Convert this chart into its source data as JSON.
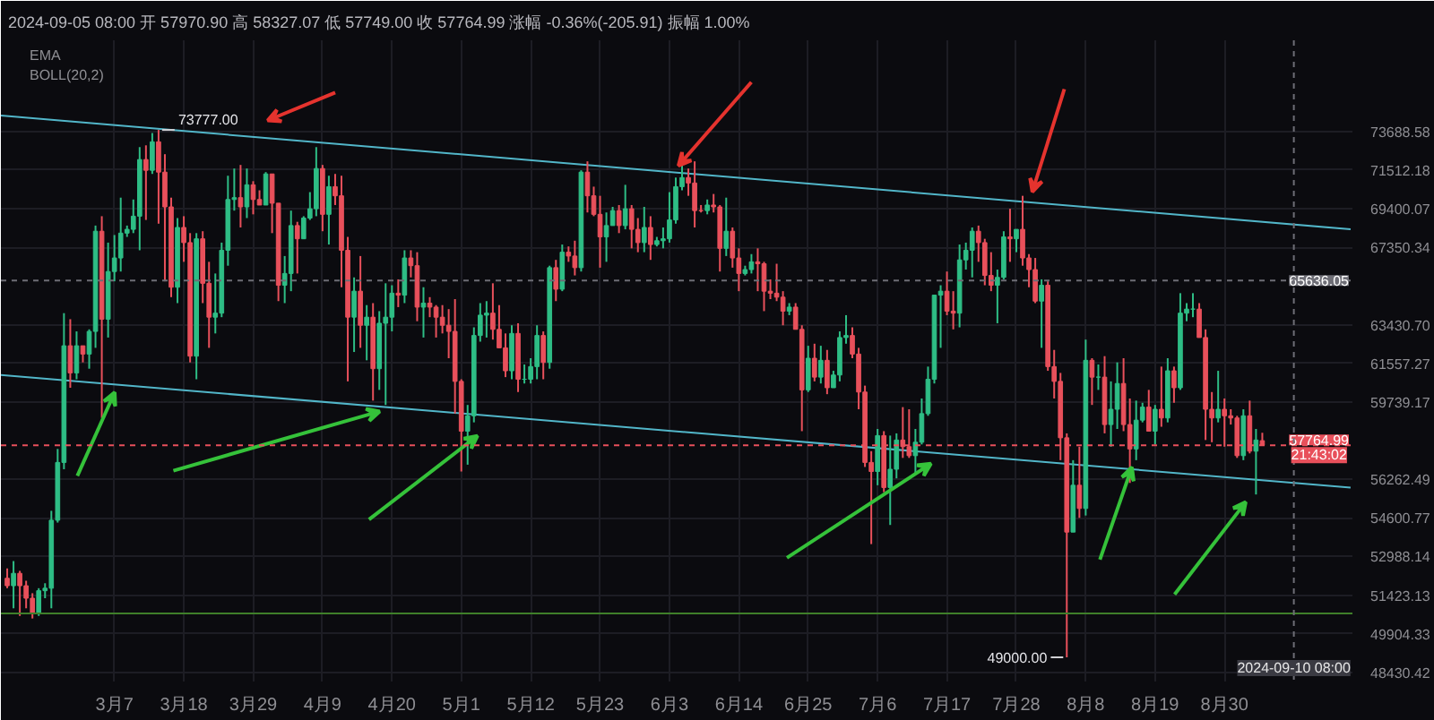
{
  "chart_data": {
    "type": "candlestick",
    "title": "2024-09-05 08:00 开 57970.90 高 58327.07 低 57749.00 收 57764.99 涨幅 -0.36%(-205.91) 振幅 1.00%",
    "x": [
      "2024-02-19",
      "2024-02-20",
      "2024-02-21",
      "2024-02-22",
      "2024-02-23",
      "2024-02-24",
      "2024-02-25",
      "2024-02-26",
      "2024-02-27",
      "2024-02-28",
      "2024-02-29",
      "2024-03-01",
      "2024-03-02",
      "2024-03-03",
      "2024-03-04",
      "2024-03-05",
      "2024-03-06",
      "2024-03-07",
      "2024-03-08",
      "2024-03-09",
      "2024-03-10",
      "2024-03-11",
      "2024-03-12",
      "2024-03-13",
      "2024-03-14",
      "2024-03-15",
      "2024-03-16",
      "2024-03-17",
      "2024-03-18",
      "2024-03-19",
      "2024-03-20",
      "2024-03-21",
      "2024-03-22",
      "2024-03-23",
      "2024-03-24",
      "2024-03-25",
      "2024-03-26",
      "2024-03-27",
      "2024-03-28",
      "2024-03-29",
      "2024-03-30",
      "2024-03-31",
      "2024-04-01",
      "2024-04-02",
      "2024-04-03",
      "2024-04-04",
      "2024-04-05",
      "2024-04-06",
      "2024-04-07",
      "2024-04-08",
      "2024-04-09",
      "2024-04-10",
      "2024-04-11",
      "2024-04-12",
      "2024-04-13",
      "2024-04-14",
      "2024-04-15",
      "2024-04-16",
      "2024-04-17",
      "2024-04-18",
      "2024-04-19",
      "2024-04-20",
      "2024-04-21",
      "2024-04-22",
      "2024-04-23",
      "2024-04-24",
      "2024-04-25",
      "2024-04-26",
      "2024-04-27",
      "2024-04-28",
      "2024-04-29",
      "2024-04-30",
      "2024-05-01",
      "2024-05-02",
      "2024-05-03",
      "2024-05-04",
      "2024-05-05",
      "2024-05-06",
      "2024-05-07",
      "2024-05-08",
      "2024-05-09",
      "2024-05-10",
      "2024-05-11",
      "2024-05-12",
      "2024-05-13",
      "2024-05-14",
      "2024-05-15",
      "2024-05-16",
      "2024-05-17",
      "2024-05-18",
      "2024-05-19",
      "2024-05-20",
      "2024-05-21",
      "2024-05-22",
      "2024-05-23",
      "2024-05-24",
      "2024-05-25",
      "2024-05-26",
      "2024-05-27",
      "2024-05-28",
      "2024-05-29",
      "2024-05-30",
      "2024-05-31",
      "2024-06-01",
      "2024-06-02",
      "2024-06-03",
      "2024-06-04",
      "2024-06-05",
      "2024-06-06",
      "2024-06-07",
      "2024-06-08",
      "2024-06-09",
      "2024-06-10",
      "2024-06-11",
      "2024-06-12",
      "2024-06-13",
      "2024-06-14",
      "2024-06-15",
      "2024-06-16",
      "2024-06-17",
      "2024-06-18",
      "2024-06-19",
      "2024-06-20",
      "2024-06-21",
      "2024-06-22",
      "2024-06-23",
      "2024-06-24",
      "2024-06-25",
      "2024-06-26",
      "2024-06-27",
      "2024-06-28",
      "2024-06-29",
      "2024-06-30",
      "2024-07-01",
      "2024-07-02",
      "2024-07-03",
      "2024-07-04",
      "2024-07-05",
      "2024-07-06",
      "2024-07-07",
      "2024-07-08",
      "2024-07-09",
      "2024-07-10",
      "2024-07-11",
      "2024-07-12",
      "2024-07-13",
      "2024-07-14",
      "2024-07-15",
      "2024-07-16",
      "2024-07-17",
      "2024-07-18",
      "2024-07-19",
      "2024-07-20",
      "2024-07-21",
      "2024-07-22",
      "2024-07-23",
      "2024-07-24",
      "2024-07-25",
      "2024-07-26",
      "2024-07-27",
      "2024-07-28",
      "2024-07-29",
      "2024-07-30",
      "2024-07-31",
      "2024-08-01",
      "2024-08-02",
      "2024-08-03",
      "2024-08-04",
      "2024-08-05",
      "2024-08-06",
      "2024-08-07",
      "2024-08-08",
      "2024-08-09",
      "2024-08-10",
      "2024-08-11",
      "2024-08-12",
      "2024-08-13",
      "2024-08-14",
      "2024-08-15",
      "2024-08-16",
      "2024-08-17",
      "2024-08-18",
      "2024-08-19",
      "2024-08-20",
      "2024-08-21",
      "2024-08-22",
      "2024-08-23",
      "2024-08-24",
      "2024-08-25",
      "2024-08-26",
      "2024-08-27",
      "2024-08-28",
      "2024-08-29",
      "2024-08-30",
      "2024-08-31",
      "2024-09-01",
      "2024-09-02",
      "2024-09-03",
      "2024-09-04",
      "2024-09-05"
    ],
    "ohlc": [
      [
        52100,
        52500,
        51700,
        51800
      ],
      [
        51800,
        52800,
        50900,
        52300
      ],
      [
        52300,
        52400,
        50600,
        51800
      ],
      [
        51800,
        52000,
        50900,
        51300
      ],
      [
        51300,
        51500,
        50500,
        50700
      ],
      [
        50700,
        51700,
        50600,
        51600
      ],
      [
        51600,
        51900,
        51300,
        51700
      ],
      [
        51700,
        54900,
        50900,
        54500
      ],
      [
        54500,
        57600,
        54400,
        57000
      ],
      [
        57000,
        64000,
        56700,
        62400
      ],
      [
        62400,
        63700,
        60400,
        61100
      ],
      [
        61100,
        63100,
        60800,
        62400
      ],
      [
        62400,
        62400,
        61600,
        62000
      ],
      [
        62000,
        63200,
        61300,
        63100
      ],
      [
        63100,
        68500,
        62300,
        68200
      ],
      [
        68200,
        69000,
        59000,
        63700
      ],
      [
        63700,
        67600,
        62800,
        66100
      ],
      [
        66100,
        68000,
        65600,
        66800
      ],
      [
        66800,
        70000,
        66100,
        68100
      ],
      [
        68100,
        68500,
        67900,
        68300
      ],
      [
        68300,
        69900,
        68100,
        69000
      ],
      [
        69000,
        72800,
        67200,
        72100
      ],
      [
        72100,
        72900,
        68800,
        71500
      ],
      [
        71500,
        73600,
        71300,
        73100
      ],
      [
        73100,
        73777,
        68600,
        71400
      ],
      [
        71400,
        72400,
        65600,
        69500
      ],
      [
        69500,
        70000,
        64800,
        65300
      ],
      [
        65300,
        68900,
        64500,
        68400
      ],
      [
        68400,
        69000,
        66600,
        67600
      ],
      [
        67600,
        68100,
        61600,
        61900
      ],
      [
        61900,
        68100,
        60800,
        67800
      ],
      [
        67800,
        68200,
        64500,
        65500
      ],
      [
        65500,
        66600,
        62300,
        63800
      ],
      [
        63800,
        66000,
        63000,
        64000
      ],
      [
        64000,
        67600,
        63800,
        67200
      ],
      [
        67200,
        71200,
        66400,
        69900
      ],
      [
        69900,
        71600,
        69300,
        70000
      ],
      [
        70000,
        71800,
        68400,
        69500
      ],
      [
        69500,
        71600,
        68900,
        70700
      ],
      [
        70700,
        70900,
        69100,
        69900
      ],
      [
        69900,
        70400,
        69600,
        69600
      ],
      [
        69600,
        71400,
        69600,
        71300
      ],
      [
        71300,
        71300,
        68100,
        69700
      ],
      [
        69700,
        69700,
        64600,
        65400
      ],
      [
        65400,
        66900,
        64500,
        66000
      ],
      [
        66000,
        69300,
        65100,
        68500
      ],
      [
        68500,
        68700,
        66000,
        67800
      ],
      [
        67800,
        69000,
        67800,
        68900
      ],
      [
        68900,
        70300,
        68800,
        69400
      ],
      [
        69400,
        72800,
        69000,
        71600
      ],
      [
        71600,
        71800,
        68200,
        69100
      ],
      [
        69100,
        71200,
        67500,
        70600
      ],
      [
        70600,
        71300,
        69600,
        70100
      ],
      [
        70100,
        71200,
        65300,
        67200
      ],
      [
        67200,
        67900,
        60700,
        63800
      ],
      [
        63800,
        65800,
        62100,
        65100
      ],
      [
        65100,
        66900,
        62300,
        63400
      ],
      [
        63400,
        64400,
        61700,
        63800
      ],
      [
        63800,
        64500,
        59800,
        61300
      ],
      [
        61300,
        64100,
        60300,
        63500
      ],
      [
        63500,
        65500,
        59600,
        63800
      ],
      [
        63800,
        65400,
        63100,
        65000
      ],
      [
        65000,
        65700,
        64300,
        64900
      ],
      [
        64900,
        67200,
        64500,
        66800
      ],
      [
        66800,
        67200,
        65800,
        66400
      ],
      [
        66400,
        67100,
        63600,
        64300
      ],
      [
        64300,
        65300,
        62800,
        64500
      ],
      [
        64500,
        64800,
        63800,
        64300
      ],
      [
        64300,
        64400,
        62800,
        63800
      ],
      [
        63800,
        64400,
        63000,
        63400
      ],
      [
        63400,
        64200,
        61800,
        63100
      ],
      [
        63100,
        64700,
        59200,
        60700
      ],
      [
        60700,
        60800,
        56600,
        58400
      ],
      [
        58400,
        59600,
        56900,
        59100
      ],
      [
        59100,
        63300,
        58800,
        62900
      ],
      [
        62900,
        64500,
        62600,
        63900
      ],
      [
        63900,
        64600,
        62800,
        64000
      ],
      [
        64000,
        65500,
        62700,
        63200
      ],
      [
        63200,
        64400,
        62300,
        62300
      ],
      [
        62300,
        63000,
        60900,
        61200
      ],
      [
        61200,
        63400,
        60800,
        63000
      ],
      [
        63000,
        63500,
        60200,
        60800
      ],
      [
        60800,
        61500,
        60600,
        60800
      ],
      [
        60800,
        61800,
        60600,
        61400
      ],
      [
        61400,
        63400,
        60800,
        62900
      ],
      [
        62900,
        63100,
        60800,
        61600
      ],
      [
        61600,
        66400,
        61300,
        66300
      ],
      [
        66300,
        66700,
        64600,
        65200
      ],
      [
        65200,
        67500,
        65100,
        67100
      ],
      [
        67100,
        67400,
        66600,
        66900
      ],
      [
        66900,
        67700,
        65900,
        66300
      ],
      [
        66300,
        71500,
        66100,
        71400
      ],
      [
        71400,
        72000,
        69200,
        70100
      ],
      [
        70100,
        70600,
        69000,
        69100
      ],
      [
        69100,
        70100,
        66300,
        67900
      ],
      [
        67900,
        69200,
        66600,
        68500
      ],
      [
        68500,
        69500,
        68500,
        69300
      ],
      [
        69300,
        69600,
        68100,
        68500
      ],
      [
        68500,
        70700,
        68300,
        69400
      ],
      [
        69400,
        69600,
        67300,
        68300
      ],
      [
        68300,
        68900,
        67100,
        67600
      ],
      [
        67600,
        69500,
        67100,
        68400
      ],
      [
        68400,
        69000,
        66700,
        67500
      ],
      [
        67500,
        67900,
        67400,
        67700
      ],
      [
        67700,
        68400,
        67300,
        67800
      ],
      [
        67800,
        70300,
        67600,
        68800
      ],
      [
        68800,
        71100,
        68600,
        70600
      ],
      [
        70600,
        71800,
        70400,
        71100
      ],
      [
        71100,
        71600,
        70100,
        70800
      ],
      [
        70800,
        72000,
        68400,
        69300
      ],
      [
        69300,
        69600,
        69200,
        69300
      ],
      [
        69300,
        69900,
        69100,
        69600
      ],
      [
        69600,
        70200,
        69200,
        69500
      ],
      [
        69500,
        69600,
        66100,
        67300
      ],
      [
        67300,
        70000,
        66900,
        68200
      ],
      [
        68200,
        68400,
        66300,
        66800
      ],
      [
        66800,
        67300,
        65100,
        66000
      ],
      [
        66000,
        66400,
        65900,
        66200
      ],
      [
        66200,
        67000,
        66000,
        66600
      ],
      [
        66600,
        67300,
        65100,
        66500
      ],
      [
        66500,
        66600,
        64100,
        65100
      ],
      [
        65100,
        65700,
        64700,
        65000
      ],
      [
        65000,
        66500,
        64600,
        64800
      ],
      [
        64800,
        65100,
        63400,
        64100
      ],
      [
        64100,
        64500,
        63900,
        64300
      ],
      [
        64300,
        64500,
        63200,
        63200
      ],
      [
        63200,
        63400,
        58400,
        60300
      ],
      [
        60300,
        62400,
        60200,
        61800
      ],
      [
        61800,
        62500,
        60700,
        60900
      ],
      [
        60900,
        62400,
        60600,
        61700
      ],
      [
        61700,
        62200,
        60100,
        60400
      ],
      [
        60400,
        61200,
        60400,
        61000
      ],
      [
        61000,
        63100,
        60700,
        62800
      ],
      [
        62800,
        63900,
        62500,
        62900
      ],
      [
        62900,
        63300,
        61800,
        62000
      ],
      [
        62000,
        62300,
        59400,
        60200
      ],
      [
        60200,
        60500,
        56800,
        57000
      ],
      [
        57000,
        57500,
        53500,
        56600
      ],
      [
        56600,
        58500,
        56000,
        58200
      ],
      [
        58200,
        58400,
        55700,
        55900
      ],
      [
        55900,
        58200,
        54300,
        56700
      ],
      [
        56700,
        58300,
        56300,
        58000
      ],
      [
        58000,
        59500,
        57200,
        57700
      ],
      [
        57700,
        59400,
        57200,
        57300
      ],
      [
        57300,
        58500,
        56500,
        57900
      ],
      [
        57900,
        59900,
        57800,
        59200
      ],
      [
        59200,
        61400,
        59100,
        60800
      ],
      [
        60800,
        64900,
        60600,
        64900
      ],
      [
        64900,
        65400,
        62300,
        65100
      ],
      [
        65100,
        66100,
        63900,
        64100
      ],
      [
        64100,
        65100,
        63200,
        64000
      ],
      [
        64000,
        67500,
        63300,
        66700
      ],
      [
        66700,
        67600,
        66200,
        67200
      ],
      [
        67200,
        68400,
        65800,
        68200
      ],
      [
        68200,
        68500,
        66600,
        67600
      ],
      [
        67600,
        67800,
        65400,
        65900
      ],
      [
        65900,
        67100,
        65100,
        65400
      ],
      [
        65400,
        66200,
        63500,
        65800
      ],
      [
        65800,
        68200,
        65700,
        67900
      ],
      [
        67900,
        69400,
        66600,
        67800
      ],
      [
        67800,
        68300,
        67100,
        68300
      ],
      [
        68300,
        70100,
        66400,
        66800
      ],
      [
        66800,
        67000,
        65300,
        66200
      ],
      [
        66200,
        66800,
        64500,
        64600
      ],
      [
        64600,
        65700,
        62300,
        65400
      ],
      [
        65400,
        65600,
        61200,
        61400
      ],
      [
        61400,
        62200,
        59900,
        60700
      ],
      [
        60700,
        61100,
        57100,
        58100
      ],
      [
        58100,
        58300,
        49000,
        54000
      ],
      [
        54000,
        57100,
        54000,
        56000
      ],
      [
        56000,
        57700,
        54600,
        55000
      ],
      [
        55000,
        62700,
        54700,
        61700
      ],
      [
        61700,
        61800,
        59600,
        60900
      ],
      [
        60900,
        61500,
        60300,
        60900
      ],
      [
        60900,
        61900,
        58300,
        58700
      ],
      [
        58700,
        60700,
        57700,
        59400
      ],
      [
        59400,
        61600,
        58500,
        60600
      ],
      [
        60600,
        61800,
        58400,
        58700
      ],
      [
        58700,
        59900,
        56100,
        57600
      ],
      [
        57600,
        59800,
        57100,
        58900
      ],
      [
        58900,
        59700,
        58800,
        59500
      ],
      [
        59500,
        60300,
        58400,
        58400
      ],
      [
        58400,
        59600,
        57800,
        59400
      ],
      [
        59400,
        61400,
        58600,
        59000
      ],
      [
        59000,
        61800,
        58800,
        61200
      ],
      [
        61200,
        61400,
        59700,
        60400
      ],
      [
        60400,
        65000,
        60300,
        64000
      ],
      [
        64000,
        64500,
        63600,
        64200
      ],
      [
        64200,
        65000,
        63800,
        64200
      ],
      [
        64200,
        64500,
        62800,
        62800
      ],
      [
        62800,
        63200,
        58000,
        59400
      ],
      [
        59400,
        60200,
        57900,
        59000
      ],
      [
        59000,
        61200,
        58800,
        59400
      ],
      [
        59400,
        59900,
        57700,
        59100
      ],
      [
        59100,
        59400,
        58700,
        59000
      ],
      [
        59000,
        59100,
        57200,
        57300
      ],
      [
        57300,
        59400,
        57100,
        59100
      ],
      [
        59100,
        59800,
        57400,
        57500
      ],
      [
        57500,
        58500,
        55600,
        58000
      ],
      [
        57970.9,
        58327.07,
        57749.0,
        57764.99
      ]
    ],
    "colors": [
      "#e8505b",
      "#2ebd85",
      "#e8505b",
      "#e8505b",
      "#e8505b",
      "#2ebd85",
      "#2ebd85",
      "#2ebd85",
      "#2ebd85",
      "#2ebd85",
      "#e8505b",
      "#2ebd85",
      "#e8505b",
      "#2ebd85",
      "#2ebd85",
      "#e8505b",
      "#2ebd85",
      "#2ebd85",
      "#2ebd85",
      "#2ebd85",
      "#2ebd85",
      "#2ebd85",
      "#e8505b",
      "#2ebd85",
      "#e8505b",
      "#e8505b",
      "#e8505b",
      "#2ebd85",
      "#e8505b",
      "#e8505b",
      "#2ebd85",
      "#e8505b",
      "#e8505b",
      "#2ebd85",
      "#2ebd85",
      "#2ebd85",
      "#2ebd85",
      "#e8505b",
      "#2ebd85",
      "#e8505b",
      "#e8505b",
      "#2ebd85",
      "#e8505b",
      "#e8505b",
      "#2ebd85",
      "#2ebd85",
      "#e8505b",
      "#2ebd85",
      "#2ebd85",
      "#2ebd85",
      "#e8505b",
      "#2ebd85",
      "#e8505b",
      "#e8505b",
      "#e8505b",
      "#2ebd85",
      "#e8505b",
      "#2ebd85",
      "#e8505b",
      "#2ebd85",
      "#2ebd85",
      "#2ebd85",
      "#e8505b",
      "#2ebd85",
      "#e8505b",
      "#e8505b",
      "#2ebd85",
      "#e8505b",
      "#e8505b",
      "#e8505b",
      "#e8505b",
      "#e8505b",
      "#e8505b",
      "#2ebd85",
      "#2ebd85",
      "#2ebd85",
      "#2ebd85",
      "#e8505b",
      "#e8505b",
      "#e8505b",
      "#2ebd85",
      "#e8505b",
      "#2ebd85",
      "#2ebd85",
      "#2ebd85",
      "#e8505b",
      "#2ebd85",
      "#e8505b",
      "#2ebd85",
      "#e8505b",
      "#e8505b",
      "#2ebd85",
      "#e8505b",
      "#e8505b",
      "#e8505b",
      "#2ebd85",
      "#2ebd85",
      "#e8505b",
      "#2ebd85",
      "#e8505b",
      "#e8505b",
      "#2ebd85",
      "#e8505b",
      "#2ebd85",
      "#2ebd85",
      "#2ebd85",
      "#2ebd85",
      "#2ebd85",
      "#e8505b",
      "#e8505b",
      "#e8505b",
      "#2ebd85",
      "#e8505b",
      "#e8505b",
      "#2ebd85",
      "#e8505b",
      "#e8505b",
      "#2ebd85",
      "#2ebd85",
      "#e8505b",
      "#e8505b",
      "#e8505b",
      "#e8505b",
      "#e8505b",
      "#2ebd85",
      "#e8505b",
      "#e8505b",
      "#2ebd85",
      "#e8505b",
      "#2ebd85",
      "#e8505b",
      "#2ebd85",
      "#2ebd85",
      "#2ebd85",
      "#e8505b",
      "#e8505b",
      "#e8505b",
      "#e8505b",
      "#2ebd85",
      "#e8505b",
      "#2ebd85",
      "#2ebd85",
      "#e8505b",
      "#e8505b",
      "#2ebd85",
      "#2ebd85",
      "#2ebd85",
      "#2ebd85",
      "#2ebd85",
      "#e8505b",
      "#e8505b",
      "#2ebd85",
      "#2ebd85",
      "#2ebd85",
      "#e8505b",
      "#e8505b",
      "#e8505b",
      "#2ebd85",
      "#2ebd85",
      "#e8505b",
      "#2ebd85",
      "#e8505b",
      "#e8505b",
      "#e8505b",
      "#2ebd85",
      "#e8505b",
      "#e8505b",
      "#e8505b",
      "#e8505b",
      "#2ebd85",
      "#e8505b",
      "#2ebd85",
      "#e8505b",
      "#2ebd85",
      "#e8505b",
      "#2ebd85",
      "#2ebd85",
      "#e8505b",
      "#e8505b",
      "#2ebd85",
      "#2ebd85",
      "#e8505b",
      "#2ebd85",
      "#e8505b",
      "#2ebd85",
      "#e8505b",
      "#2ebd85",
      "#2ebd85",
      "#2ebd85",
      "#e8505b",
      "#e8505b",
      "#e8505b",
      "#2ebd85",
      "#e8505b",
      "#e8505b",
      "#e8505b",
      "#2ebd85",
      "#e8505b",
      "#2ebd85",
      "#e8505b"
    ],
    "series": [
      {
        "type": "line",
        "color": "#52b6c9",
        "x": [
          "2024-02-18",
          "2024-09-19"
        ],
        "values": [
          74600,
          68300
        ]
      },
      {
        "type": "line",
        "color": "#52b6c9",
        "x": [
          "2024-02-18",
          "2024-09-19"
        ],
        "values": [
          61000,
          55900
        ]
      }
    ],
    "xlim": [
      "2024-02-18",
      "2024-09-19T07:00"
    ],
    "xticks": [
      {
        "value": "2024-03-07",
        "label": "3月7"
      },
      {
        "value": "2024-03-18",
        "label": "3月18"
      },
      {
        "value": "2024-03-29",
        "label": "3月29"
      },
      {
        "value": "2024-04-09",
        "label": "4月9"
      },
      {
        "value": "2024-04-20",
        "label": "4月20"
      },
      {
        "value": "2024-05-01",
        "label": "5月1"
      },
      {
        "value": "2024-05-12",
        "label": "5月12"
      },
      {
        "value": "2024-05-23",
        "label": "5月23"
      },
      {
        "value": "2024-06-03",
        "label": "6月3"
      },
      {
        "value": "2024-06-14",
        "label": "6月14"
      },
      {
        "value": "2024-06-25",
        "label": "6月25"
      },
      {
        "value": "2024-07-06",
        "label": "7月6"
      },
      {
        "value": "2024-07-17",
        "label": "7月17"
      },
      {
        "value": "2024-07-28",
        "label": "7月28"
      },
      {
        "value": "2024-08-08",
        "label": "8月8"
      },
      {
        "value": "2024-08-19",
        "label": "8月19"
      },
      {
        "value": "2024-08-30",
        "label": "8月30"
      }
    ],
    "ylim": [
      48090,
      79090
    ],
    "yticks": [
      73688.58,
      71512.18,
      69400.07,
      67350.34,
      {
        "value": 63430.7,
        "label": "63430.70"
      },
      61557.27,
      59739.17,
      56262.49,
      54600.77,
      52988.14,
      51423.13,
      49904.33,
      48430.42
    ],
    "log": true,
    "grid": true,
    "ref_lines": [
      {
        "axis": "y",
        "value": 65636.05,
        "label": "65636.05",
        "color": "#6e6e76",
        "line_style": "dashed"
      },
      {
        "axis": "y",
        "value": 57764.99,
        "label": "57764.99",
        "color": "#e8505b",
        "line_style": "dashed"
      },
      {
        "axis": "y",
        "value": 50700,
        "color": "#3f7f2a"
      },
      {
        "axis": "x",
        "value": "2024-09-10",
        "label": "2024-09-10 08:00",
        "color": "#6e6e76",
        "line_style": "dashed"
      }
    ],
    "annotations": [
      "EMA",
      "BOLL(20,2)",
      {
        "text": "73777.00",
        "x": "2024-03-14",
        "y": 73777
      },
      {
        "text": "49000.00",
        "x": "2024-08-05",
        "y": 49000
      },
      {
        "text": "21:43:02",
        "x": "2024-09-14",
        "y": 57764.99
      }
    ]
  }
}
